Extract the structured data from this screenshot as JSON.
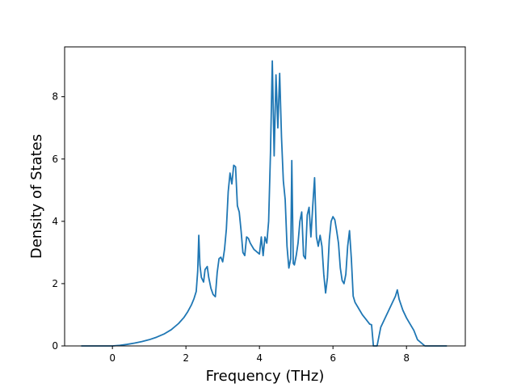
{
  "chart_data": {
    "type": "line",
    "title": "",
    "xlabel": "Frequency (THz)",
    "ylabel": "Density of States",
    "xlim": [
      -1.3,
      9.6
    ],
    "ylim": [
      0,
      9.6
    ],
    "x_ticks": [
      0,
      2,
      4,
      6,
      8
    ],
    "x_tick_labels": [
      "0",
      "2",
      "4",
      "6",
      "8"
    ],
    "y_ticks": [
      0,
      2,
      4,
      6,
      8
    ],
    "y_tick_labels": [
      "0",
      "2",
      "4",
      "6",
      "8"
    ],
    "grid": false,
    "legend": false,
    "line_color": "#1f77b4",
    "series": [
      {
        "x": [
          -0.85,
          -0.5,
          0,
          0.2,
          0.4,
          0.6,
          0.8,
          1.0,
          1.2,
          1.4,
          1.6,
          1.8,
          1.95,
          2.05,
          2.15,
          2.22,
          2.28,
          2.32,
          2.35,
          2.38,
          2.42,
          2.48,
          2.52,
          2.58,
          2.62,
          2.68,
          2.74,
          2.8,
          2.85,
          2.9,
          2.95,
          3.0,
          3.05,
          3.1,
          3.15,
          3.2,
          3.25,
          3.3,
          3.35,
          3.4,
          3.45,
          3.5,
          3.55,
          3.6,
          3.65,
          3.7,
          3.75,
          3.8,
          3.85,
          3.9,
          3.95,
          4.0,
          4.05,
          4.1,
          4.15,
          4.2,
          4.25,
          4.3,
          4.35,
          4.4,
          4.45,
          4.5,
          4.55,
          4.6,
          4.65,
          4.7,
          4.75,
          4.8,
          4.85,
          4.88,
          4.92,
          4.95,
          5.0,
          5.05,
          5.1,
          5.15,
          5.2,
          5.25,
          5.3,
          5.35,
          5.4,
          5.45,
          5.5,
          5.55,
          5.6,
          5.65,
          5.7,
          5.75,
          5.8,
          5.85,
          5.9,
          5.95,
          6.0,
          6.05,
          6.1,
          6.15,
          6.2,
          6.25,
          6.3,
          6.35,
          6.4,
          6.45,
          6.5,
          6.55,
          6.6,
          6.7,
          6.8,
          6.9,
          7.0,
          7.05,
          7.1,
          7.2,
          7.3,
          7.4,
          7.5,
          7.6,
          7.7,
          7.75,
          7.8,
          7.9,
          8.0,
          8.1,
          8.2,
          8.3,
          8.5,
          9.1
        ],
        "y": [
          0,
          0,
          0,
          0.02,
          0.05,
          0.09,
          0.14,
          0.2,
          0.28,
          0.38,
          0.52,
          0.72,
          0.92,
          1.1,
          1.32,
          1.52,
          1.75,
          2.4,
          3.55,
          2.6,
          2.2,
          2.05,
          2.45,
          2.55,
          2.2,
          1.85,
          1.65,
          1.58,
          2.35,
          2.8,
          2.85,
          2.7,
          3.1,
          3.75,
          4.95,
          5.55,
          5.2,
          5.8,
          5.75,
          4.5,
          4.3,
          3.7,
          3.0,
          2.9,
          3.5,
          3.45,
          3.3,
          3.2,
          3.1,
          3.05,
          3.0,
          2.95,
          3.5,
          2.9,
          3.5,
          3.3,
          4.0,
          6.2,
          9.15,
          6.1,
          8.7,
          7.0,
          8.75,
          6.7,
          5.3,
          4.7,
          3.2,
          2.5,
          2.8,
          5.95,
          2.65,
          2.6,
          2.9,
          3.3,
          4.0,
          4.3,
          2.9,
          2.8,
          4.2,
          4.45,
          3.5,
          4.5,
          5.4,
          3.5,
          3.2,
          3.55,
          3.2,
          2.3,
          1.7,
          2.2,
          3.4,
          4.0,
          4.15,
          4.05,
          3.7,
          3.3,
          2.5,
          2.1,
          2.0,
          2.3,
          3.2,
          3.7,
          2.8,
          1.6,
          1.4,
          1.2,
          1.0,
          0.85,
          0.7,
          0.68,
          0,
          0,
          0.6,
          0.85,
          1.1,
          1.35,
          1.6,
          1.8,
          1.5,
          1.15,
          0.9,
          0.7,
          0.5,
          0.2,
          0,
          0
        ]
      }
    ]
  }
}
